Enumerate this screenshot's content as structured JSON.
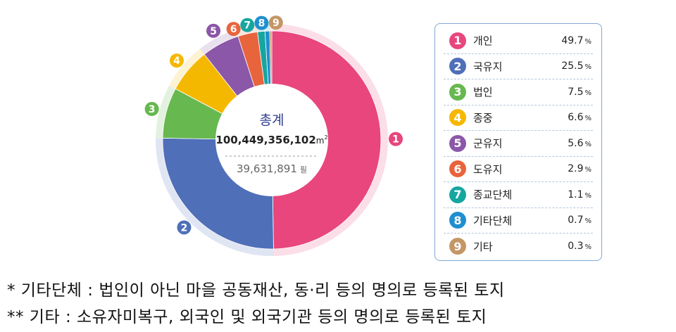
{
  "chart_data": {
    "type": "pie",
    "center": {
      "title": "총계",
      "area_value": "100,449,356,102",
      "area_unit": "m",
      "area_unit_sup": "2",
      "parcel_value": "39,631,891",
      "parcel_unit": "필"
    },
    "categories": [
      "개인",
      "국유지",
      "법인",
      "종중",
      "군유지",
      "도유지",
      "종교단체",
      "기타단체",
      "기타"
    ],
    "numbers": [
      "1",
      "2",
      "3",
      "4",
      "5",
      "6",
      "7",
      "8",
      "9"
    ],
    "values": [
      49.7,
      25.5,
      7.5,
      6.6,
      5.6,
      2.9,
      1.1,
      0.7,
      0.3
    ],
    "value_labels": [
      "49.7",
      "25.5",
      "7.5",
      "6.6",
      "5.6",
      "2.9",
      "1.1",
      "0.7",
      "0.3"
    ],
    "unit": "%",
    "colors": [
      "#e8467c",
      "#4f6fb8",
      "#66b84f",
      "#f5b800",
      "#8b57a8",
      "#e8643c",
      "#16a6a0",
      "#1f8fcf",
      "#c49666"
    ]
  },
  "notes": [
    "* 기타단체 : 법인이 아닌 마을 공동재산, 동·리 등의 명의로 등록된 토지",
    "** 기타 : 소유자미복구, 외국인 및 외국기관 등의 명의로 등록된 토지"
  ]
}
